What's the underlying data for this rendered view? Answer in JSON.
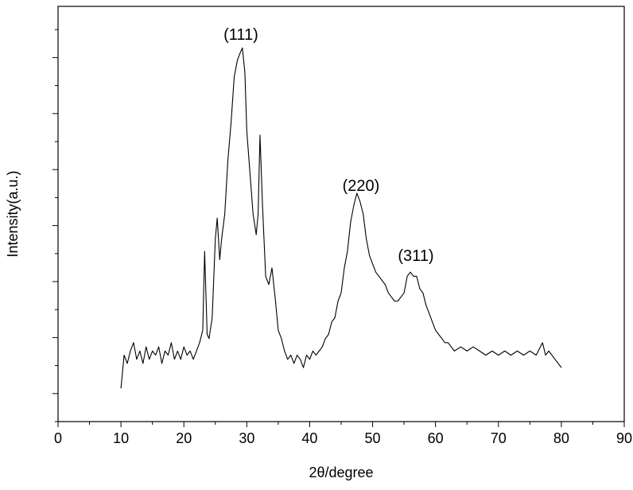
{
  "chart_data": {
    "type": "line",
    "xlabel": "2θ/degree",
    "ylabel": "Intensity(a.u.)",
    "annotations": [
      "(111)",
      "(220)",
      "(311)"
    ],
    "color": "#000000",
    "xlim": [
      0,
      90
    ],
    "xticks": [
      0,
      10,
      20,
      30,
      40,
      50,
      60,
      70,
      80,
      90
    ],
    "ylim": [
      0,
      100
    ],
    "x": [
      10,
      10.5,
      11,
      11.5,
      12,
      12.5,
      13,
      13.5,
      14,
      14.5,
      15,
      15.5,
      16,
      16.5,
      17,
      17.5,
      18,
      18.5,
      19,
      19.5,
      20,
      20.5,
      21,
      21.5,
      22,
      22.5,
      23,
      23.3,
      23.7,
      24,
      24.5,
      25,
      25.3,
      25.7,
      26,
      26.5,
      27,
      27.5,
      28,
      28.5,
      29,
      29.3,
      29.7,
      30,
      30.5,
      31,
      31.5,
      31.8,
      32.1,
      32.5,
      33,
      33.5,
      34,
      34.5,
      35,
      35.5,
      36,
      36.5,
      37,
      37.5,
      38,
      38.5,
      39,
      39.5,
      40,
      40.5,
      41,
      41.5,
      42,
      42.5,
      43,
      43.5,
      44,
      44.5,
      45,
      45.5,
      46,
      46.5,
      47,
      47.5,
      48,
      48.5,
      49,
      49.5,
      50,
      50.5,
      51,
      51.5,
      52,
      52.5,
      53,
      53.5,
      54,
      54.5,
      55,
      55.5,
      56,
      56.5,
      57,
      57.5,
      58,
      58.5,
      59,
      59.5,
      60,
      60.5,
      61,
      61.5,
      62,
      63,
      64,
      65,
      66,
      67,
      68,
      69,
      70,
      71,
      72,
      73,
      74,
      75,
      76,
      77,
      77.5,
      78,
      79,
      80
    ],
    "values": [
      8,
      16,
      14,
      17,
      19,
      15,
      17,
      14,
      18,
      15,
      17,
      16,
      18,
      14,
      17,
      16,
      19,
      15,
      17,
      15,
      18,
      16,
      17,
      15,
      17,
      19,
      22,
      41,
      21,
      20,
      25,
      44,
      49,
      39,
      44,
      50,
      63,
      72,
      83,
      87,
      89,
      90,
      84,
      70,
      60,
      50,
      45,
      50,
      69,
      52,
      35,
      33,
      37,
      30,
      22,
      20,
      17,
      15,
      16,
      14,
      16,
      15,
      13,
      16,
      15,
      17,
      16,
      17,
      18,
      20,
      21,
      24,
      25,
      29,
      31,
      37,
      41,
      48,
      52,
      55,
      53,
      50,
      44,
      40,
      38,
      36,
      35,
      34,
      33,
      31,
      30,
      29,
      29,
      30,
      31,
      35,
      36,
      35,
      35,
      32,
      31,
      28,
      26,
      24,
      22,
      21,
      20,
      19,
      19,
      17,
      18,
      17,
      18,
      17,
      16,
      17,
      16,
      17,
      16,
      17,
      16,
      17,
      16,
      19,
      16,
      17,
      15,
      13
    ]
  }
}
